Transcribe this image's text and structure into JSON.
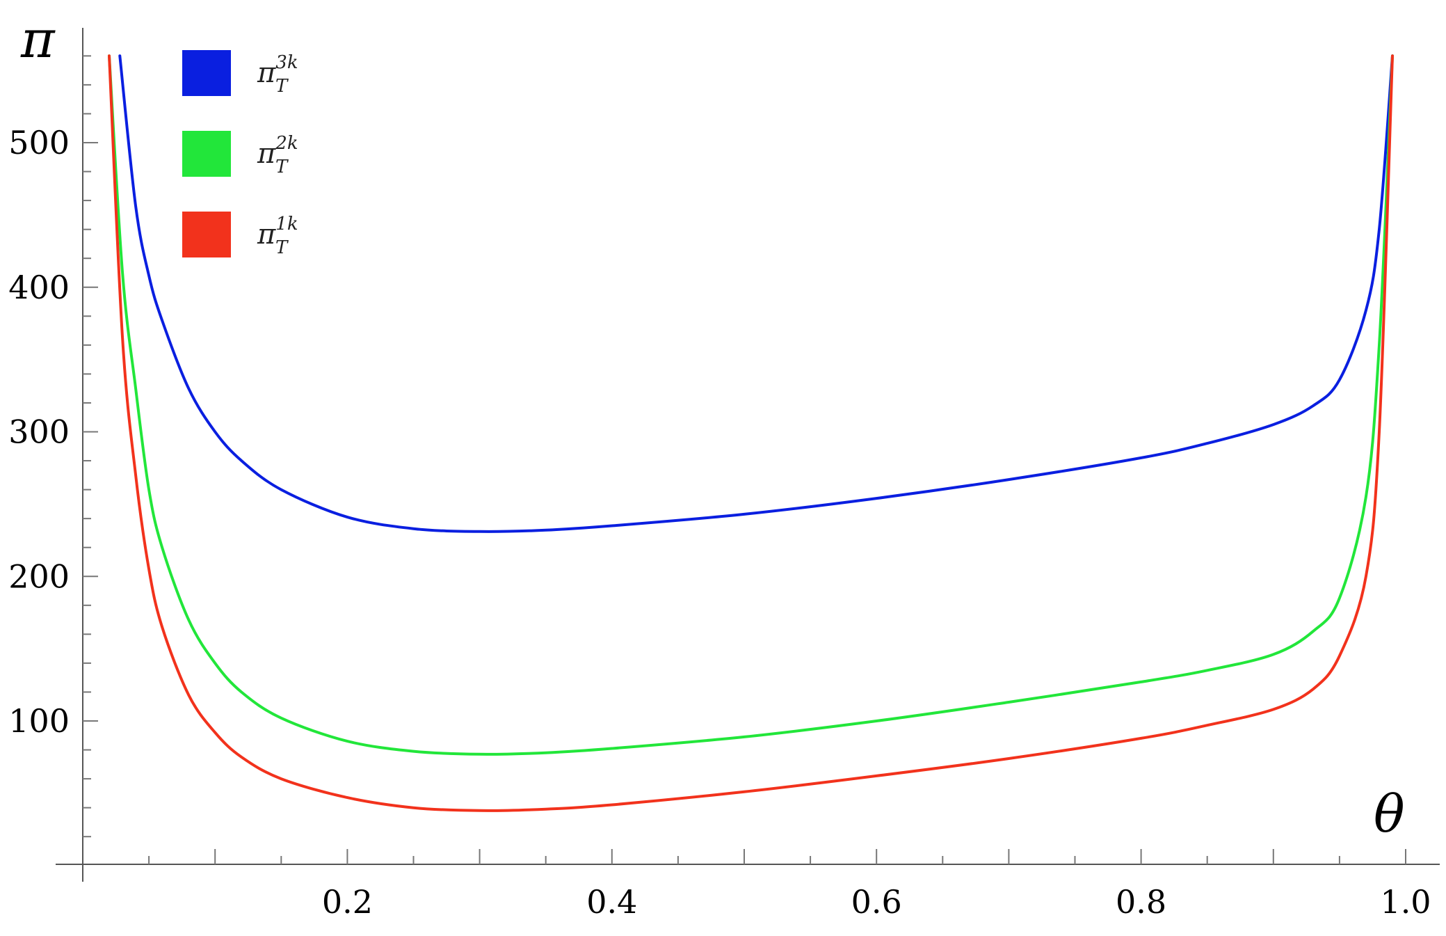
{
  "chart_data": {
    "type": "line",
    "title": "",
    "xlabel": "θ",
    "ylabel": "π",
    "xlim": [
      0,
      1.0
    ],
    "ylim": [
      0,
      560
    ],
    "x_ticks": [
      0.2,
      0.4,
      0.6,
      0.8,
      1.0
    ],
    "x_tick_labels": [
      "0.2",
      "0.4",
      "0.6",
      "0.8",
      "1.0"
    ],
    "y_ticks": [
      100,
      200,
      300,
      400,
      500
    ],
    "y_tick_labels": [
      "100",
      "200",
      "300",
      "400",
      "500"
    ],
    "grid": false,
    "legend_position": "top-left",
    "series": [
      {
        "name": "π_T^{3k}",
        "legend_base": "π",
        "legend_sub": "T",
        "legend_sup": "3k",
        "color": "#0a1fe0",
        "x": [
          0.028,
          0.04,
          0.05,
          0.06,
          0.08,
          0.1,
          0.12,
          0.15,
          0.2,
          0.25,
          0.3,
          0.35,
          0.4,
          0.5,
          0.6,
          0.7,
          0.8,
          0.85,
          0.9,
          0.93,
          0.95,
          0.97,
          0.98,
          0.99
        ],
        "y": [
          560,
          456,
          408,
          377,
          330,
          300,
          280,
          260,
          241,
          233,
          231,
          232,
          235,
          243,
          254,
          267,
          282,
          292,
          305,
          318,
          336,
          384,
          440,
          560
        ]
      },
      {
        "name": "π_T^{2k}",
        "legend_base": "π",
        "legend_sub": "T",
        "legend_sup": "2k",
        "color": "#22e63a",
        "x": [
          0.02,
          0.03,
          0.04,
          0.05,
          0.06,
          0.08,
          0.1,
          0.12,
          0.15,
          0.2,
          0.25,
          0.3,
          0.35,
          0.4,
          0.5,
          0.6,
          0.7,
          0.8,
          0.85,
          0.9,
          0.93,
          0.95,
          0.97,
          0.98,
          0.99
        ],
        "y": [
          560,
          410,
          330,
          260,
          220,
          170,
          140,
          120,
          102,
          86,
          79,
          77,
          78,
          81,
          89,
          100,
          113,
          127,
          135,
          146,
          162,
          185,
          255,
          360,
          560
        ]
      },
      {
        "name": "π_T^{1k}",
        "legend_base": "π",
        "legend_sub": "T",
        "legend_sup": "1k",
        "color": "#f2321c",
        "x": [
          0.02,
          0.03,
          0.04,
          0.05,
          0.06,
          0.08,
          0.1,
          0.12,
          0.15,
          0.2,
          0.25,
          0.3,
          0.35,
          0.4,
          0.5,
          0.6,
          0.7,
          0.8,
          0.85,
          0.9,
          0.93,
          0.95,
          0.97,
          0.98,
          0.99
        ],
        "y": [
          560,
          365,
          270,
          205,
          165,
          118,
          92,
          75,
          60,
          47,
          40,
          38,
          39,
          42,
          51,
          62,
          74,
          88,
          97,
          108,
          122,
          145,
          200,
          300,
          560
        ]
      }
    ]
  }
}
